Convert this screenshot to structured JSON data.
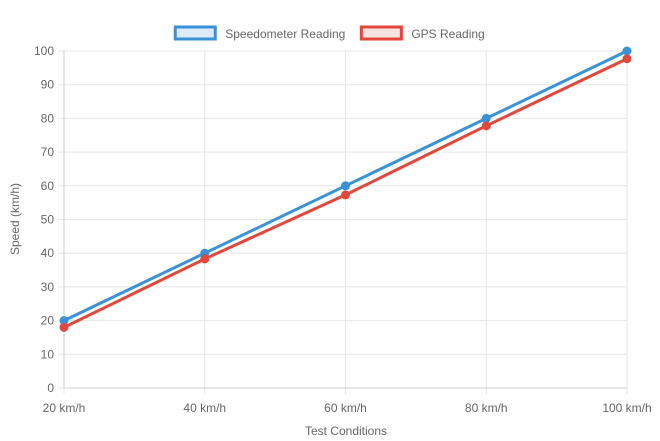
{
  "chart_data": {
    "type": "line",
    "categories": [
      "20 km/h",
      "40 km/h",
      "60 km/h",
      "80 km/h",
      "100 km/h"
    ],
    "series": [
      {
        "name": "Speedometer Reading",
        "values": [
          20,
          40,
          60,
          80,
          100
        ],
        "color": "#3a92d6",
        "fill": "#ddeaf7"
      },
      {
        "name": "GPS Reading",
        "values": [
          18,
          38.3,
          57.3,
          77.8,
          97.7
        ],
        "color": "#e0483d",
        "fill": "#f8e3e1"
      }
    ],
    "xlabel": "Test Conditions",
    "ylabel": "Speed (km/h)",
    "ylim": [
      0,
      100
    ],
    "yticks": [
      "0",
      "10",
      "20",
      "30",
      "40",
      "50",
      "60",
      "70",
      "80",
      "90",
      "100"
    ],
    "grid": true,
    "legend_position": "top-center"
  }
}
